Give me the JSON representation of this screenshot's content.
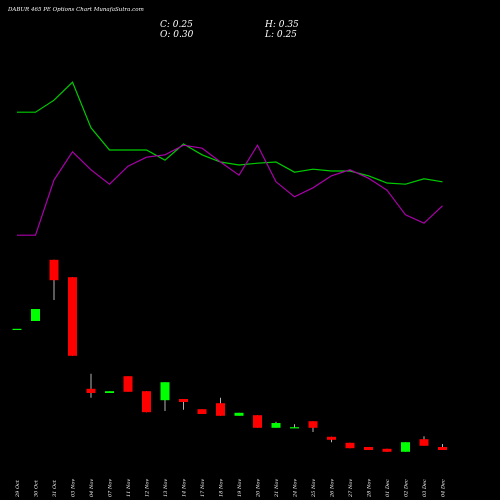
{
  "chart_data": {
    "type": "candlestick",
    "title": "DABUR 465 PE Options Chart MunafaSutra.com",
    "header": [
      "C: 0.25",
      "H: 0.35",
      "O: 0.30",
      "L: 0.25"
    ],
    "categories": [
      "29 Oct",
      "30 Oct",
      "31 Oct",
      "03 Nov",
      "04 Nov",
      "07 Nov",
      "11 Nov",
      "12 Nov",
      "13 Nov",
      "14 Nov",
      "17 Nov",
      "18 Nov",
      "19 Nov",
      "20 Nov",
      "21 Nov",
      "24 Nov",
      "25 Nov",
      "26 Nov",
      "27 Nov",
      "28 Nov",
      "01 Dec",
      "02 Dec",
      "03 Dec",
      "04 Dec"
    ],
    "open": [
      2.27,
      2.4,
      3.42,
      3.13,
      1.27,
      1.2,
      1.48,
      1.23,
      1.08,
      1.1,
      0.93,
      1.03,
      0.82,
      0.83,
      0.62,
      0.62,
      0.73,
      0.47,
      0.37,
      0.3,
      0.27,
      0.22,
      0.43,
      0.3
    ],
    "high": [
      2.27,
      2.6,
      3.42,
      3.13,
      1.52,
      1.23,
      1.48,
      1.23,
      1.38,
      1.1,
      0.93,
      1.12,
      0.87,
      0.83,
      0.72,
      0.68,
      0.73,
      0.47,
      0.37,
      0.3,
      0.27,
      0.38,
      0.48,
      0.35
    ],
    "low": [
      2.27,
      2.4,
      2.75,
      1.82,
      1.12,
      1.2,
      1.22,
      0.88,
      0.9,
      0.92,
      0.85,
      0.82,
      0.82,
      0.62,
      0.62,
      0.62,
      0.55,
      0.38,
      0.28,
      0.25,
      0.22,
      0.22,
      0.32,
      0.25
    ],
    "close": [
      2.27,
      2.6,
      3.08,
      1.82,
      1.2,
      1.23,
      1.22,
      0.88,
      1.38,
      1.05,
      0.85,
      0.82,
      0.87,
      0.62,
      0.7,
      0.63,
      0.62,
      0.42,
      0.28,
      0.25,
      0.22,
      0.38,
      0.32,
      0.25
    ],
    "up_color": "#00ff00",
    "down_color": "#ff0000",
    "series": [
      {
        "color": "#00cc00",
        "values": [
          5.88,
          5.88,
          6.08,
          6.38,
          5.62,
          5.25,
          5.25,
          5.25,
          5.08,
          5.35,
          5.17,
          5.05,
          5.0,
          5.03,
          5.05,
          4.88,
          4.93,
          4.9,
          4.9,
          4.82,
          4.7,
          4.68,
          4.77,
          4.72
        ]
      },
      {
        "color": "#aa00aa",
        "values": [
          3.83,
          3.83,
          4.75,
          5.22,
          4.92,
          4.68,
          4.98,
          5.13,
          5.17,
          5.33,
          5.28,
          5.05,
          4.83,
          5.33,
          4.72,
          4.47,
          4.62,
          4.82,
          4.92,
          4.78,
          4.58,
          4.17,
          4.03,
          4.32
        ]
      }
    ],
    "ylim": [
      0,
      7.75
    ]
  }
}
